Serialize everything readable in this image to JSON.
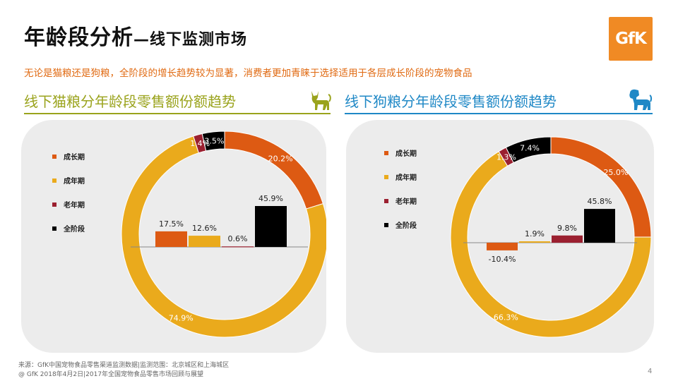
{
  "header": {
    "title": "年龄段分析",
    "title_suffix": "—线下监测市场",
    "subtitle": "无论是猫粮还是狗粮，全阶段的增长趋势较为显著，消费者更加青睐于选择适用于各层成长阶段的宠物食品",
    "logo_text": "GfK"
  },
  "sections": [
    {
      "title": "线下猫粮分年龄段零售额份额趋势",
      "icon": "cat-icon",
      "accent": "#9aa31c"
    },
    {
      "title": "线下狗粮分年龄段零售额份额趋势",
      "icon": "dog-icon",
      "accent": "#1f88c6"
    }
  ],
  "colors": {
    "成长期": "#dd5a13",
    "成年期": "#eaaa1c",
    "老年期": "#9b2030",
    "全阶段": "#000000"
  },
  "chart_data": [
    {
      "type": "donut+bar",
      "title": "线下猫粮分年龄段零售额份额趋势",
      "legend": [
        "成长期",
        "成年期",
        "老年期",
        "全阶段"
      ],
      "legend_position": "left",
      "donut": {
        "categories": [
          "成长期",
          "成年期",
          "老年期",
          "全阶段"
        ],
        "values": [
          20.2,
          74.9,
          1.4,
          3.5
        ],
        "labels": [
          "20.2%",
          "74.9%",
          "1.4%",
          "3.5%"
        ]
      },
      "bars": {
        "categories": [
          "成长期",
          "成年期",
          "老年期",
          "全阶段"
        ],
        "values": [
          17.5,
          12.6,
          0.6,
          45.9
        ],
        "labels": [
          "17.5%",
          "12.6%",
          "0.6%",
          "45.9%"
        ]
      }
    },
    {
      "type": "donut+bar",
      "title": "线下狗粮分年龄段零售额份额趋势",
      "legend": [
        "成长期",
        "成年期",
        "老年期",
        "全阶段"
      ],
      "legend_position": "left",
      "donut": {
        "categories": [
          "成长期",
          "成年期",
          "老年期",
          "全阶段"
        ],
        "values": [
          25.0,
          66.3,
          1.3,
          7.4
        ],
        "labels": [
          "25.0%",
          "66.3%",
          "1.3%",
          "7.4%"
        ]
      },
      "bars": {
        "categories": [
          "成长期",
          "成年期",
          "老年期",
          "全阶段"
        ],
        "values": [
          -10.4,
          1.9,
          9.8,
          45.8
        ],
        "labels": [
          "-10.4%",
          "1.9%",
          "9.8%",
          "45.8%"
        ]
      }
    }
  ],
  "footer": {
    "source": "来源：GfK中国宠物食品零售渠道监测数据|监测范围：北京城区和上海城区",
    "copyright": "@ GfK 2018年4月2日|2017年全国宠物食品零售市场回顾与展望",
    "page": "4"
  }
}
